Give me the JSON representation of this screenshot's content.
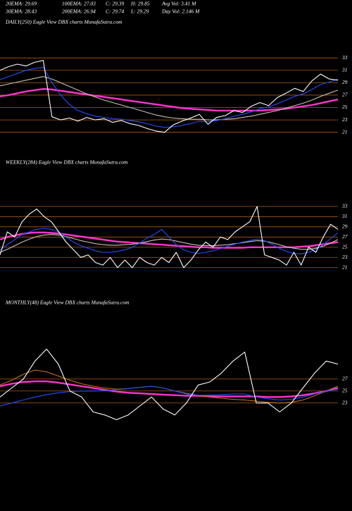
{
  "header": {
    "row1": [
      "20EMA: 29.69",
      "100EMA: 27.03",
      "C: 29.39",
      "H: 29.85",
      "Avg Vol: 3.41 M"
    ],
    "row2": [
      "30EMA: 28.43",
      "200EMA: 26.94",
      "C: 29.74",
      "L: 29.29",
      "Day Vol: 2.146 M"
    ]
  },
  "chart_data": [
    {
      "type": "line",
      "title": "DAILY(250) Eagle  View  DBX  charts MunafaSutra.com",
      "ylim": [
        19.6,
        37.8
      ],
      "yticks": [
        21,
        23,
        25,
        27,
        29,
        31,
        33
      ],
      "grid": true,
      "grid_color": "#b35a10",
      "series": [
        {
          "color": "#ff33cc",
          "values": [
            26.8,
            27,
            27.3,
            27.6,
            27.8,
            28,
            27.9,
            27.7,
            27.5,
            27.3,
            27.1,
            26.9,
            26.7,
            26.5,
            26.3,
            26.1,
            25.9,
            25.7,
            25.5,
            25.3,
            25.1,
            24.9,
            24.8,
            24.7,
            24.6,
            24.5,
            24.5,
            24.5,
            24.5,
            24.5,
            24.5,
            24.6,
            24.7,
            24.8,
            25,
            25.2,
            25.4,
            25.7,
            26,
            26.3
          ]
        },
        {
          "color": "#c8c0b0",
          "values": [
            28.5,
            28.8,
            29.1,
            29.4,
            29.7,
            30,
            29.6,
            29,
            28.4,
            27.8,
            27.2,
            26.7,
            26.2,
            25.8,
            25.4,
            25,
            24.6,
            24.2,
            23.8,
            23.5,
            23.3,
            23.2,
            23.1,
            23.1,
            23,
            23,
            23.1,
            23.2,
            23.4,
            23.6,
            23.9,
            24.2,
            24.5,
            24.9,
            25.3,
            25.7,
            26.2,
            26.8,
            27.3,
            27.8
          ]
        },
        {
          "color": "#2050ff",
          "values": [
            29.5,
            30,
            30.5,
            31,
            31.3,
            31.5,
            29,
            27,
            25.5,
            24.5,
            24,
            23.6,
            23.4,
            23.2,
            23.1,
            22.9,
            22.7,
            22.4,
            22,
            21.8,
            21.9,
            22.1,
            22.4,
            22.8,
            22.7,
            22.9,
            23.2,
            23.6,
            23.9,
            24.3,
            24.8,
            25.1,
            25.6,
            26.2,
            26.8,
            27.2,
            27.9,
            28.7,
            29.1,
            29.6
          ]
        },
        {
          "color": "#ffffff",
          "values": [
            31,
            31.6,
            32,
            31.7,
            32.3,
            32.6,
            23.5,
            23,
            23.3,
            22.8,
            23.4,
            23,
            23.2,
            22.6,
            22.9,
            22.4,
            22.1,
            21.6,
            21.2,
            21,
            22.2,
            22.8,
            23.3,
            23.9,
            22.3,
            23.4,
            23.7,
            24.5,
            24.2,
            25.2,
            25.8,
            25.3,
            26.6,
            27.3,
            28.1,
            27.6,
            29.3,
            30.4,
            29.6,
            29.4
          ]
        }
      ]
    },
    {
      "type": "line",
      "title": "WEEKLY(284) Eagle  View  DBX  charts MunafaSutra.com",
      "ylim": [
        18.2,
        40.3
      ],
      "yticks": [
        21,
        23,
        25,
        27,
        29,
        31,
        33
      ],
      "grid": true,
      "grid_color": "#b35a10",
      "series": [
        {
          "color": "#ff33cc",
          "values": [
            26.5,
            27,
            27.3,
            27.6,
            27.8,
            27.9,
            27.9,
            27.8,
            27.7,
            27.5,
            27.3,
            27.1,
            26.9,
            26.7,
            26.5,
            26.3,
            26.1,
            26,
            25.9,
            25.8,
            25.7,
            25.6,
            25.5,
            25.4,
            25.3,
            25.2,
            25.1,
            25,
            25,
            24.9,
            24.9,
            24.9,
            24.9,
            24.9,
            25,
            25,
            25,
            25,
            25,
            25,
            25,
            25.1,
            25.2,
            25.4,
            25.6,
            25.8,
            26
          ]
        },
        {
          "color": "#c8c0b0",
          "values": [
            24,
            24.6,
            25.3,
            26,
            26.6,
            27.1,
            27.4,
            27.5,
            27.4,
            27.1,
            26.7,
            26.3,
            26,
            25.7,
            25.5,
            25.4,
            25.4,
            25.5,
            25.6,
            25.8,
            26.1,
            26.4,
            26.6,
            26.5,
            26.2,
            25.9,
            25.6,
            25.4,
            25.3,
            25.3,
            25.4,
            25.5,
            25.7,
            25.9,
            26.1,
            26.3,
            26.2,
            25.9,
            25.5,
            25.1,
            24.8,
            24.6,
            24.6,
            24.8,
            25.2,
            25.8,
            26.5
          ]
        },
        {
          "color": "#2050ff",
          "values": [
            24.5,
            25.5,
            26.5,
            27.5,
            28,
            28.5,
            28.7,
            28.5,
            28,
            27,
            26,
            25.3,
            24.8,
            24.3,
            24,
            24,
            24.2,
            24.5,
            25,
            25.8,
            26.8,
            27.5,
            28.5,
            27,
            25.5,
            24.5,
            24,
            23.8,
            24,
            24.3,
            24.7,
            25.2,
            25.6,
            26,
            26.3,
            26.6,
            26.3,
            25.6,
            24.8,
            24.2,
            23.8,
            23.7,
            24,
            24.6,
            25.5,
            26.7,
            27.8
          ]
        },
        {
          "color": "#ffffff",
          "values": [
            23.5,
            28,
            27,
            30,
            31.5,
            32.5,
            31,
            30,
            28,
            26,
            24.5,
            23,
            23.5,
            22,
            21.5,
            23,
            21,
            22.5,
            21,
            23,
            22,
            21.5,
            23,
            22,
            24,
            21,
            22.5,
            24.5,
            26,
            25,
            27,
            26.5,
            28,
            29,
            30,
            33,
            23.5,
            23,
            22.5,
            21.5,
            24,
            21.5,
            25,
            24,
            27,
            29.5,
            28.5
          ]
        }
      ]
    },
    {
      "type": "line",
      "title": "MONTHLY(48) Eagle  View  DBX  charts MunafaSutra.com",
      "ylim": [
        18.5,
        38.5
      ],
      "yticks": [
        23,
        25,
        27
      ],
      "grid": true,
      "grid_color": "#b35a10",
      "series": [
        {
          "color": "#ff33cc",
          "values": [
            25.8,
            26.2,
            26.5,
            26.6,
            26.6,
            26.4,
            26.1,
            25.8,
            25.5,
            25.2,
            24.9,
            24.7,
            24.6,
            24.5,
            24.4,
            24.3,
            24.2,
            24.2,
            24.1,
            24.1,
            24.1,
            24.1,
            24.1,
            24,
            24,
            24.1,
            24.3,
            24.6,
            25,
            25.5
          ]
        },
        {
          "color": "#c8701a",
          "values": [
            26,
            26.8,
            27.8,
            28.5,
            28.2,
            27.5,
            26.8,
            26.2,
            25.8,
            25.5,
            25.3,
            25.4,
            25.6,
            25.8,
            25.5,
            25,
            24.6,
            24.3,
            24,
            23.8,
            23.6,
            23.5,
            23.3,
            23.1,
            23,
            23.1,
            23.5,
            24.2,
            25,
            25.8
          ]
        },
        {
          "color": "#2050ff",
          "values": [
            22.5,
            23,
            23.5,
            24,
            24.4,
            24.7,
            24.9,
            25,
            25,
            25.1,
            25.2,
            25.4,
            25.6,
            25.8,
            25.5,
            25,
            24.5,
            24.3,
            24.3,
            24.4,
            24.5,
            24.5,
            24,
            23.7,
            23.5,
            23.6,
            24,
            24.5,
            25,
            25.3
          ]
        },
        {
          "color": "#ffffff",
          "values": [
            24,
            25.5,
            27,
            30,
            32,
            29.5,
            25,
            24,
            21.5,
            21,
            20.2,
            21,
            22.5,
            24,
            22,
            21,
            23,
            26,
            26.5,
            28,
            30,
            31.5,
            23,
            23,
            21.5,
            23,
            25.5,
            28,
            30,
            29.5
          ]
        }
      ]
    }
  ]
}
